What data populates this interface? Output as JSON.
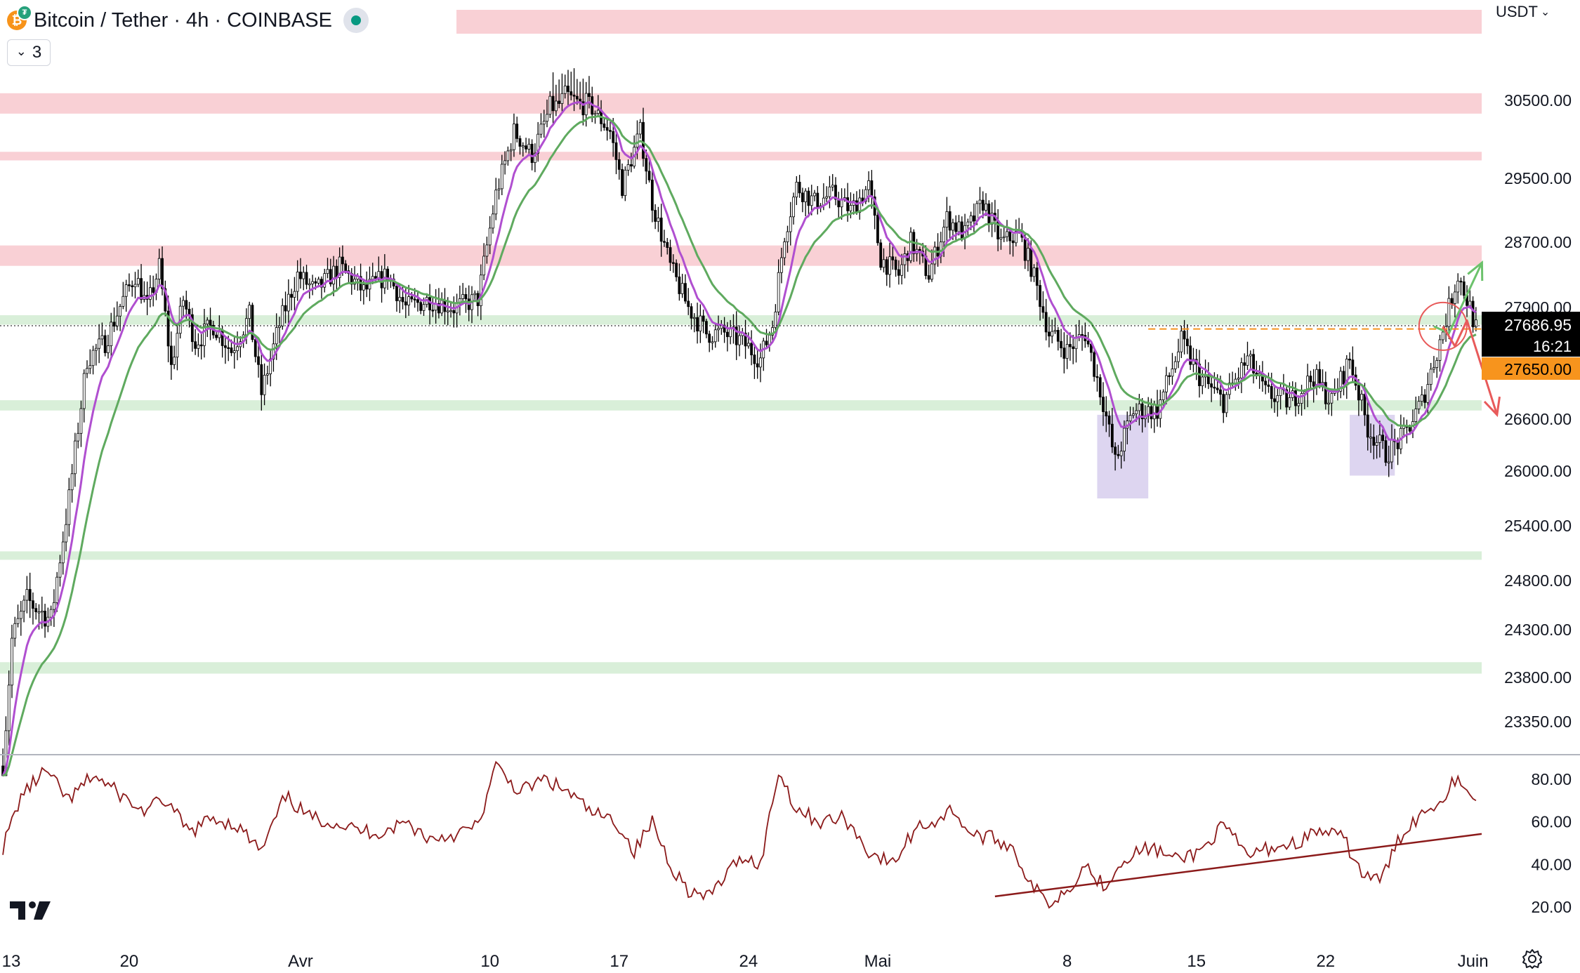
{
  "header": {
    "title": "Bitcoin / Tether · 4h · COINBASE",
    "indicator_count": "3",
    "currency": "USDT",
    "coin_icon": "bitcoin-icon",
    "quote_icon": "tether-icon"
  },
  "price_scale": {
    "labels": [
      "30500.00",
      "29500.00",
      "28700.00",
      "27900.00",
      "26600.00",
      "26000.00",
      "25400.00",
      "24800.00",
      "24300.00",
      "23800.00",
      "23350.00"
    ],
    "values": [
      30500,
      29500,
      28700,
      27900,
      26600,
      26000,
      25400,
      24800,
      24300,
      23800,
      23350
    ],
    "last_price": "27686.95",
    "last_value": 27686.95,
    "countdown": "16:21",
    "level_label": "27650.00",
    "level_value": 27650
  },
  "rsi_scale": {
    "labels": [
      "80.00",
      "60.00",
      "40.00",
      "20.00"
    ],
    "values": [
      80,
      60,
      40,
      20
    ]
  },
  "time_axis": {
    "labels": [
      "13",
      "20",
      "Avr",
      "10",
      "17",
      "24",
      "Mai",
      "8",
      "15",
      "22",
      "Juin"
    ],
    "bars": [
      0,
      42,
      99,
      162,
      205,
      248,
      291,
      354,
      397,
      440,
      489
    ]
  },
  "colors": {
    "up": "#000000",
    "down": "#000000",
    "ema_fast": "#b04fd0",
    "ema_slow": "#5faa5f",
    "resistance_zone": "#f9d0d5",
    "support_zone": "#d9efd9",
    "rsi": "#8b1a1a",
    "highlight_box": "#ddd5f0",
    "bull_arrow": "#6cc26c",
    "bear_arrow": "#e85a5a",
    "last_price_bg": "#000000",
    "level_bg": "#f7941d"
  },
  "chart_data": {
    "type": "candlestick",
    "timeframe": "4h",
    "ylim": [
      22800,
      31000
    ],
    "rsi_ylim": [
      10,
      90
    ],
    "resistance_zones": [
      [
        30330,
        30550
      ],
      [
        29730,
        29840
      ],
      [
        28410,
        28660
      ]
    ],
    "support_zones": [
      [
        27700,
        27810
      ],
      [
        26700,
        26820
      ],
      [
        25040,
        25120
      ],
      [
        23840,
        23960
      ]
    ],
    "anchors": [
      [
        0,
        22900
      ],
      [
        3,
        24200
      ],
      [
        8,
        24600
      ],
      [
        16,
        24400
      ],
      [
        22,
        25700
      ],
      [
        28,
        27300
      ],
      [
        34,
        27500
      ],
      [
        40,
        28000
      ],
      [
        44,
        28300
      ],
      [
        48,
        27900
      ],
      [
        52,
        28400
      ],
      [
        56,
        27200
      ],
      [
        60,
        28000
      ],
      [
        64,
        27500
      ],
      [
        70,
        27700
      ],
      [
        76,
        27400
      ],
      [
        82,
        27800
      ],
      [
        86,
        26900
      ],
      [
        92,
        27700
      ],
      [
        98,
        28300
      ],
      [
        104,
        28100
      ],
      [
        112,
        28400
      ],
      [
        120,
        28100
      ],
      [
        128,
        28300
      ],
      [
        134,
        27900
      ],
      [
        142,
        28000
      ],
      [
        150,
        27900
      ],
      [
        158,
        28000
      ],
      [
        164,
        29300
      ],
      [
        170,
        30100
      ],
      [
        176,
        29800
      ],
      [
        182,
        30400
      ],
      [
        188,
        30500
      ],
      [
        196,
        30400
      ],
      [
        202,
        30100
      ],
      [
        206,
        29400
      ],
      [
        212,
        30100
      ],
      [
        216,
        29200
      ],
      [
        222,
        28400
      ],
      [
        228,
        27900
      ],
      [
        234,
        27600
      ],
      [
        240,
        27600
      ],
      [
        246,
        27500
      ],
      [
        252,
        27300
      ],
      [
        256,
        27700
      ],
      [
        260,
        28800
      ],
      [
        264,
        29400
      ],
      [
        270,
        29200
      ],
      [
        276,
        29300
      ],
      [
        282,
        29100
      ],
      [
        288,
        29400
      ],
      [
        292,
        28500
      ],
      [
        298,
        28300
      ],
      [
        302,
        28700
      ],
      [
        308,
        28300
      ],
      [
        314,
        29000
      ],
      [
        320,
        28800
      ],
      [
        326,
        29200
      ],
      [
        332,
        28700
      ],
      [
        338,
        28800
      ],
      [
        342,
        28400
      ],
      [
        348,
        27600
      ],
      [
        354,
        27400
      ],
      [
        360,
        27600
      ],
      [
        366,
        26800
      ],
      [
        370,
        26100
      ],
      [
        376,
        26700
      ],
      [
        384,
        26700
      ],
      [
        392,
        27500
      ],
      [
        398,
        27100
      ],
      [
        406,
        26800
      ],
      [
        414,
        27300
      ],
      [
        420,
        26900
      ],
      [
        428,
        26800
      ],
      [
        436,
        27100
      ],
      [
        442,
        26800
      ],
      [
        448,
        27300
      ],
      [
        454,
        26500
      ],
      [
        460,
        26200
      ],
      [
        466,
        26400
      ],
      [
        472,
        26800
      ],
      [
        478,
        27500
      ],
      [
        484,
        28300
      ],
      [
        488,
        27900
      ],
      [
        490,
        27650
      ]
    ],
    "rsi_anchors": [
      [
        0,
        48
      ],
      [
        6,
        72
      ],
      [
        14,
        84
      ],
      [
        22,
        70
      ],
      [
        30,
        82
      ],
      [
        38,
        74
      ],
      [
        46,
        65
      ],
      [
        54,
        70
      ],
      [
        62,
        55
      ],
      [
        70,
        62
      ],
      [
        78,
        58
      ],
      [
        86,
        46
      ],
      [
        94,
        72
      ],
      [
        102,
        62
      ],
      [
        110,
        60
      ],
      [
        118,
        56
      ],
      [
        126,
        55
      ],
      [
        134,
        60
      ],
      [
        142,
        52
      ],
      [
        150,
        54
      ],
      [
        158,
        58
      ],
      [
        164,
        86
      ],
      [
        172,
        74
      ],
      [
        180,
        80
      ],
      [
        188,
        74
      ],
      [
        196,
        64
      ],
      [
        204,
        60
      ],
      [
        210,
        46
      ],
      [
        216,
        60
      ],
      [
        222,
        40
      ],
      [
        228,
        28
      ],
      [
        234,
        24
      ],
      [
        240,
        34
      ],
      [
        246,
        44
      ],
      [
        252,
        40
      ],
      [
        258,
        84
      ],
      [
        264,
        66
      ],
      [
        272,
        60
      ],
      [
        280,
        62
      ],
      [
        288,
        46
      ],
      [
        296,
        40
      ],
      [
        304,
        58
      ],
      [
        310,
        60
      ],
      [
        316,
        66
      ],
      [
        322,
        54
      ],
      [
        330,
        52
      ],
      [
        336,
        48
      ],
      [
        342,
        30
      ],
      [
        348,
        22
      ],
      [
        354,
        28
      ],
      [
        360,
        40
      ],
      [
        366,
        30
      ],
      [
        374,
        44
      ],
      [
        382,
        48
      ],
      [
        390,
        42
      ],
      [
        398,
        46
      ],
      [
        406,
        58
      ],
      [
        414,
        44
      ],
      [
        422,
        48
      ],
      [
        430,
        50
      ],
      [
        438,
        56
      ],
      [
        446,
        52
      ],
      [
        452,
        36
      ],
      [
        458,
        32
      ],
      [
        466,
        56
      ],
      [
        472,
        64
      ],
      [
        478,
        70
      ],
      [
        484,
        82
      ],
      [
        490,
        68
      ]
    ],
    "rsi_trendline": [
      [
        330,
        25
      ],
      [
        490,
        54
      ]
    ],
    "highlight_boxes": [
      {
        "bars": [
          364,
          381
        ],
        "ylim": [
          25700,
          26650
        ]
      },
      {
        "bars": [
          448,
          463
        ],
        "ylim": [
          25950,
          26650
        ]
      }
    ],
    "last_price_line": 27686.95,
    "level_line": {
      "value": 27650,
      "from_bar": 381
    },
    "circle": {
      "bar": 479,
      "value": 27680
    },
    "bull_path": [
      [
        476,
        27680
      ],
      [
        481,
        27600
      ],
      [
        492,
        28450
      ]
    ],
    "bear_path": [
      [
        479,
        27680
      ],
      [
        483,
        27450
      ],
      [
        487,
        27750
      ],
      [
        497,
        26650
      ]
    ]
  }
}
